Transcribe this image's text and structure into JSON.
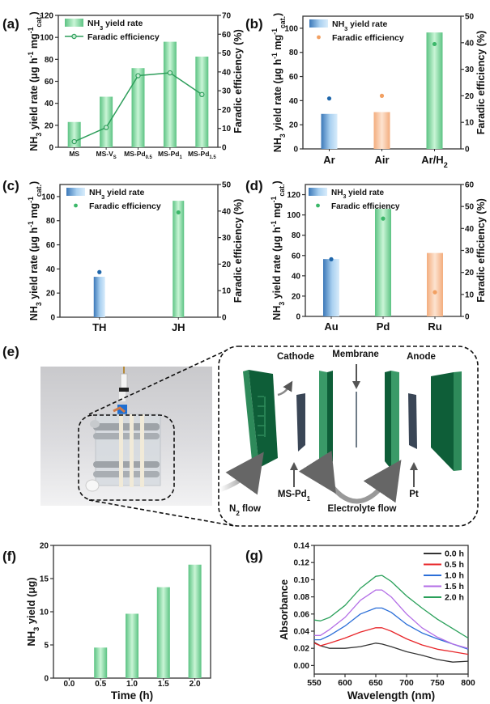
{
  "figure_panels": {
    "e": {
      "label": "(e)",
      "cathode": "Cathode",
      "membrane": "Membrane",
      "anode": "Anode",
      "ms_pd1": "MS-Pd_{1}",
      "pt": "Pt",
      "n2_flow": "N_{2} flow",
      "electrolyte_flow": "Electrolyte flow",
      "plate_color": "#0e5e38",
      "frame_color": "#2e8a5a",
      "electrode_color": "#3a4656"
    }
  },
  "colors": {
    "green_bar": "#7fd99c",
    "blue_bar": "#5b97d2",
    "orange_bar": "#f5b98f",
    "green_point": "#3cb86a",
    "blue_point": "#1f66aa",
    "orange_point": "#f2a062",
    "fe_line": "#2e9e5b"
  },
  "chart_data": [
    {
      "panel": "a",
      "label": "(a)",
      "type": "bar+line",
      "categories": [
        "MS",
        "MS-V_{S}",
        "MS-Pd_{0.5}",
        "MS-Pd_{1}",
        "MS-Pd_{1.5}"
      ],
      "ylabel": "NH_{3} yield rate (μg h^{-1} mg^{-1}_{cat.})",
      "y2label": "Faradic efficiency (%)",
      "ylim": [
        0,
        120
      ],
      "yticks": [
        0,
        20,
        40,
        60,
        80,
        100,
        120
      ],
      "y2lim": [
        0,
        70
      ],
      "y2ticks": [
        0,
        10,
        20,
        30,
        40,
        50,
        60,
        70
      ],
      "legend": "top-left",
      "series": [
        {
          "name": "NH_{3} yield rate",
          "axis": "left",
          "kind": "bar",
          "values": [
            23,
            46,
            72,
            96,
            82.5
          ],
          "colors": [
            "green",
            "green",
            "green",
            "green",
            "green"
          ]
        },
        {
          "name": "Faradic efficiency",
          "axis": "right",
          "kind": "line",
          "values": [
            3,
            10.5,
            38,
            39.5,
            28
          ],
          "colors": [
            "green",
            "green",
            "green",
            "green",
            "green"
          ]
        }
      ]
    },
    {
      "panel": "b",
      "label": "(b)",
      "type": "bar+scatter",
      "categories": [
        "Ar",
        "Air",
        "Ar/H_{2}"
      ],
      "ylabel": "NH_{3} yield rate (μg h^{-1} mg^{-1}_{cat.})",
      "y2label": "Faradic efficiency (%)",
      "ylim": [
        0,
        110
      ],
      "yticks": [
        0,
        20,
        40,
        60,
        80,
        100
      ],
      "y2lim": [
        0,
        50
      ],
      "y2ticks": [
        0,
        10,
        20,
        30,
        40,
        50
      ],
      "legend": "top-left",
      "series": [
        {
          "name": "NH_{3} yield rate",
          "axis": "left",
          "kind": "bar",
          "values": [
            29,
            30.5,
            96.5
          ],
          "colors": [
            "blue",
            "orange",
            "green"
          ]
        },
        {
          "name": "Faradic efficiency",
          "axis": "right",
          "kind": "scatter",
          "values": [
            19,
            20,
            39.5
          ],
          "colors": [
            "blue",
            "orange",
            "green"
          ]
        }
      ],
      "legend_colors": [
        "blue",
        "orange"
      ]
    },
    {
      "panel": "c",
      "label": "(c)",
      "type": "bar+scatter",
      "categories": [
        "TH",
        "JH"
      ],
      "ylabel": "NH_{3} yield rate (μg h^{-1} mg^{-1}_{cat.})",
      "y2label": "Faradic efficiency (%)",
      "ylim": [
        0,
        110
      ],
      "yticks": [
        0,
        20,
        40,
        60,
        80,
        100
      ],
      "y2lim": [
        0,
        50
      ],
      "y2ticks": [
        0,
        10,
        20,
        30,
        40,
        50
      ],
      "legend": "top-left",
      "series": [
        {
          "name": "NH_{3} yield rate",
          "axis": "left",
          "kind": "bar",
          "values": [
            33.5,
            96.5
          ],
          "colors": [
            "blue",
            "green"
          ]
        },
        {
          "name": "Faradic efficiency",
          "axis": "right",
          "kind": "scatter",
          "values": [
            17,
            39.5
          ],
          "colors": [
            "blue",
            "green"
          ]
        }
      ],
      "legend_colors": [
        "blue",
        "green"
      ]
    },
    {
      "panel": "d",
      "label": "(d)",
      "type": "bar+scatter",
      "categories": [
        "Au",
        "Pd",
        "Ru"
      ],
      "ylabel": "NH_{3} yield rate (μg h^{-1} mg^{-1}_{cat.})",
      "y2label": "Faradic efficiency (%)",
      "ylim": [
        0,
        130
      ],
      "yticks": [
        0,
        20,
        40,
        60,
        80,
        100,
        120
      ],
      "y2lim": [
        0,
        60
      ],
      "y2ticks": [
        0,
        10,
        20,
        30,
        40,
        50,
        60
      ],
      "legend": "top-left",
      "series": [
        {
          "name": "NH_{3} yield rate",
          "axis": "left",
          "kind": "bar",
          "values": [
            56.5,
            106,
            62.5
          ],
          "colors": [
            "blue",
            "green",
            "orange"
          ]
        },
        {
          "name": "Faradic efficiency",
          "axis": "right",
          "kind": "scatter",
          "values": [
            26,
            44.5,
            11
          ],
          "colors": [
            "blue",
            "green",
            "orange"
          ]
        }
      ],
      "legend_colors": [
        "blue",
        "green"
      ]
    },
    {
      "panel": "f",
      "label": "(f)",
      "type": "bar",
      "categories": [
        "0.0",
        "0.5",
        "1.0",
        "1.5",
        "2.0"
      ],
      "xlabel": "Time (h)",
      "ylabel": "NH_{3} yield (μg)",
      "ylim": [
        0,
        20
      ],
      "yticks": [
        0,
        5,
        10,
        15,
        20
      ],
      "series": [
        {
          "kind": "bar",
          "axis": "left",
          "values": [
            0,
            4.6,
            9.7,
            13.7,
            17.1
          ],
          "colors": [
            "green",
            "green",
            "green",
            "green",
            "green"
          ]
        }
      ]
    },
    {
      "panel": "g",
      "label": "(g)",
      "type": "line",
      "xlabel": "Wavelength (nm)",
      "ylabel": "Absorbance",
      "xlim": [
        550,
        800
      ],
      "xticks": [
        550,
        600,
        650,
        700,
        750,
        800
      ],
      "ylim": [
        -0.01,
        0.14
      ],
      "yticks": [
        0.0,
        0.02,
        0.04,
        0.06,
        0.08,
        0.1,
        0.12,
        0.14
      ],
      "legend": "top-right",
      "x": [
        550,
        560,
        575,
        600,
        625,
        650,
        660,
        675,
        700,
        725,
        750,
        775,
        800
      ],
      "series": [
        {
          "name": "0.0 h",
          "color": "#333333",
          "values": [
            0.027,
            0.023,
            0.02,
            0.02,
            0.022,
            0.026,
            0.025,
            0.022,
            0.016,
            0.012,
            0.007,
            0.004,
            0.005
          ]
        },
        {
          "name": "0.5 h",
          "color": "#e8262a",
          "values": [
            0.026,
            0.023,
            0.026,
            0.032,
            0.039,
            0.044,
            0.044,
            0.04,
            0.031,
            0.024,
            0.019,
            0.016,
            0.013
          ]
        },
        {
          "name": "1.0 h",
          "color": "#2b6fd8",
          "values": [
            0.03,
            0.03,
            0.035,
            0.046,
            0.06,
            0.067,
            0.067,
            0.062,
            0.048,
            0.038,
            0.031,
            0.025,
            0.019
          ]
        },
        {
          "name": "1.5 h",
          "color": "#b36ee6",
          "values": [
            0.035,
            0.035,
            0.042,
            0.056,
            0.076,
            0.088,
            0.088,
            0.08,
            0.06,
            0.044,
            0.033,
            0.025,
            0.02
          ]
        },
        {
          "name": "2.0 h",
          "color": "#2aa05a",
          "values": [
            0.053,
            0.052,
            0.056,
            0.07,
            0.09,
            0.104,
            0.105,
            0.098,
            0.081,
            0.067,
            0.054,
            0.043,
            0.032
          ]
        }
      ]
    }
  ]
}
